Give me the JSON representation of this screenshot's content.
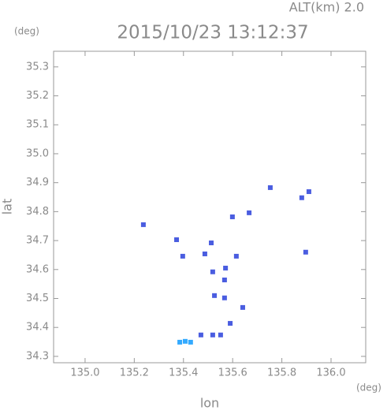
{
  "chart_data": {
    "type": "scatter",
    "title": "2015/10/23 13:12:37",
    "subtitle": "ALT(km) 2.0",
    "x_label": "lon",
    "y_label": "lat",
    "x_unit": "(deg)",
    "y_unit": "(deg)",
    "xlim": [
      134.872,
      136.141
    ],
    "ylim": [
      34.278,
      35.354
    ],
    "xticks": [
      {
        "value": 135.0,
        "label": "135.0"
      },
      135.2,
      135.4,
      135.6,
      135.8,
      {
        "value": 136.0,
        "label": "136.0"
      }
    ],
    "yticks": [
      34.3,
      34.4,
      34.5,
      34.6,
      34.7,
      34.8,
      34.9,
      {
        "value": 35.0,
        "label": "35.0"
      },
      35.1,
      35.2,
      35.3
    ],
    "series": [
      {
        "color": "#4a5de0",
        "x": [
          135.237,
          135.372,
          135.397,
          135.487,
          135.513,
          135.519,
          135.571,
          135.567,
          135.615,
          135.599,
          135.667,
          135.753,
          135.881,
          135.91,
          135.897,
          135.526,
          135.567,
          135.641,
          135.59,
          135.519,
          135.471,
          135.551
        ],
        "values": [
          34.755,
          34.703,
          34.646,
          34.654,
          34.692,
          34.592,
          34.605,
          34.564,
          34.646,
          34.782,
          34.796,
          34.883,
          34.848,
          34.869,
          34.66,
          34.51,
          34.502,
          34.469,
          34.414,
          34.374,
          34.374,
          34.374
        ]
      },
      {
        "color": "#33aaff",
        "x": [
          135.385,
          135.407,
          135.429
        ],
        "values": [
          34.349,
          34.352,
          34.349
        ]
      }
    ]
  }
}
